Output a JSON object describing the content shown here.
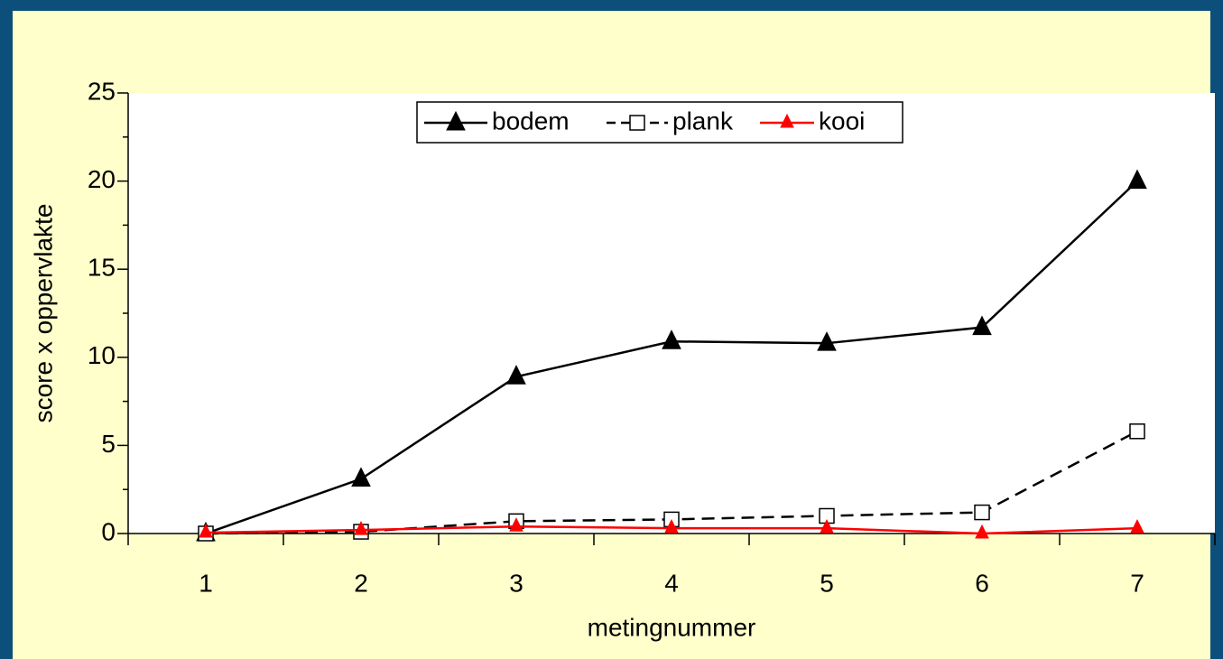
{
  "chart_data": {
    "type": "line",
    "xlabel": "metingnummer",
    "ylabel": "score x oppervlakte",
    "categories": [
      "1",
      "2",
      "3",
      "4",
      "5",
      "6",
      "7"
    ],
    "series": [
      {
        "name": "bodem",
        "color": "#000000",
        "line_style": "solid",
        "marker": "triangle",
        "marker_fill": "#000000",
        "values": [
          0,
          3.1,
          8.9,
          10.9,
          10.8,
          11.7,
          20
        ]
      },
      {
        "name": "plank",
        "color": "#000000",
        "line_style": "dashed",
        "marker": "square",
        "marker_fill": "#ffffff",
        "values": [
          0,
          0.1,
          0.7,
          0.8,
          1.0,
          1.2,
          5.8
        ]
      },
      {
        "name": "kooi",
        "color": "#ff0000",
        "line_style": "solid",
        "marker": "triangle",
        "marker_fill": "#ff0000",
        "values": [
          0.05,
          0.2,
          0.4,
          0.3,
          0.3,
          0,
          0.3
        ]
      }
    ],
    "ylim": [
      0,
      25
    ],
    "yticks": [
      0,
      5,
      10,
      15,
      20,
      25
    ],
    "yminorticks": [
      2.5,
      7.5,
      12.5,
      17.5,
      22.5
    ],
    "legend": "top"
  }
}
